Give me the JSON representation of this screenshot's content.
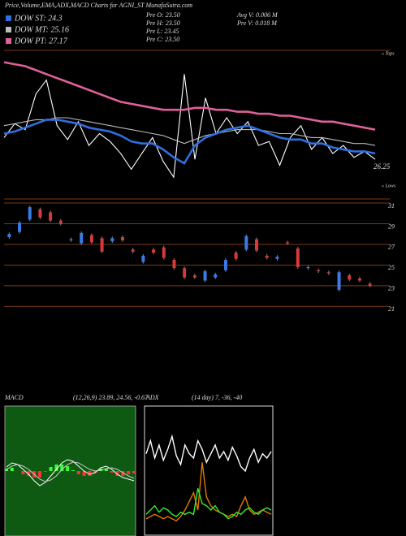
{
  "chart_data": [
    {
      "type": "line",
      "title": "Price,Volume,EMA,ADX,MACD Charts for AGNI_ST MunafaSutra.com",
      "stats": [
        "Pre  O: 23.50",
        "Pre  H: 23.50",
        "Pre  L: 23.45",
        "Pre  C: 23.50",
        "Avg V: 0.006  M",
        "Pre  V: 0.018 M"
      ],
      "annotations": [
        "« Tops",
        "« Lows",
        "26.25"
      ],
      "ylim": [
        24.5,
        32
      ],
      "series": [
        {
          "color": "#ffffff",
          "values": [
            27.6,
            28.3,
            28.0,
            29.8,
            30.5,
            28.2,
            27.5,
            28.4,
            27.2,
            27.8,
            27.4,
            26.8,
            26.0,
            26.8,
            27.6,
            26.4,
            25.6,
            30.8,
            26.5,
            29.6,
            27.8,
            28.6,
            27.8,
            28.4,
            27.2,
            27.4,
            26.2,
            27.6,
            28.2,
            27.0,
            27.6,
            26.8,
            27.2,
            26.6,
            26.9,
            26.5
          ]
        },
        {
          "name": "DOW MT: 25.16",
          "color": "#bbbbbb",
          "values": [
            28.2,
            28.3,
            28.4,
            28.5,
            28.5,
            28.6,
            28.6,
            28.5,
            28.4,
            28.3,
            28.2,
            28.1,
            28.0,
            27.9,
            27.8,
            27.7,
            27.5,
            27.3,
            27.5,
            27.7,
            27.8,
            27.9,
            28.0,
            28.0,
            28.0,
            27.9,
            27.8,
            27.8,
            27.7,
            27.6,
            27.6,
            27.5,
            27.4,
            27.3,
            27.3,
            27.2
          ]
        },
        {
          "name": "DOW ST: 24.3",
          "color": "#2f6fe0",
          "values": [
            27.8,
            27.9,
            28.1,
            28.3,
            28.5,
            28.5,
            28.4,
            28.3,
            28.1,
            28.0,
            27.9,
            27.7,
            27.4,
            27.3,
            27.3,
            27.0,
            26.6,
            26.3,
            27.2,
            27.6,
            27.8,
            28.0,
            28.1,
            28.2,
            28.0,
            27.8,
            27.6,
            27.5,
            27.5,
            27.3,
            27.3,
            27.1,
            27.0,
            26.9,
            26.9,
            26.8
          ]
        },
        {
          "name": "DOW PT: 27.17",
          "color": "#e0609a",
          "values": [
            31.4,
            31.3,
            31.2,
            31.0,
            30.8,
            30.6,
            30.4,
            30.2,
            30.0,
            29.8,
            29.6,
            29.4,
            29.3,
            29.2,
            29.1,
            29.0,
            29.0,
            29.0,
            29.1,
            29.1,
            29.0,
            29.0,
            28.9,
            28.9,
            28.8,
            28.8,
            28.7,
            28.7,
            28.6,
            28.5,
            28.4,
            28.4,
            28.3,
            28.2,
            28.1,
            28.0
          ]
        }
      ]
    },
    {
      "type": "candlestick",
      "ylim": [
        20,
        31
      ],
      "yticks": [
        31,
        29,
        27,
        25,
        23,
        21
      ],
      "up_color": "#3a7be8",
      "down_color": "#d83a3a",
      "open": [
        27.7,
        28.2,
        29.4,
        30.4,
        30.1,
        29.3,
        27.4,
        27.1,
        27.9,
        27.6,
        27.3,
        27.7,
        26.5,
        25.3,
        26.5,
        26.7,
        25.5,
        24.7,
        24.0,
        23.5,
        23.8,
        24.5,
        26.2,
        26.5,
        27.5,
        25.9,
        25.6,
        27.2,
        26.6,
        24.7,
        24.5,
        24.3,
        22.6,
        24.0,
        23.7,
        23.2
      ],
      "close": [
        28.0,
        29.1,
        30.6,
        29.6,
        29.3,
        29.0,
        27.5,
        28.1,
        27.2,
        26.3,
        27.6,
        27.4,
        26.3,
        25.9,
        26.2,
        25.7,
        24.7,
        23.8,
        23.8,
        24.4,
        24.1,
        25.5,
        25.6,
        27.8,
        26.4,
        25.7,
        25.8,
        27.1,
        24.8,
        24.8,
        24.4,
        24.2,
        24.3,
        23.6,
        23.5,
        23.0
      ]
    },
    {
      "type": "macd",
      "title": "MACD",
      "subtitle": "(12,26,9) 23.89, 24.56, -0.67",
      "ylim": [
        -8,
        8
      ],
      "series": [
        {
          "color": "#ffffff",
          "values": [
            0.5,
            1.0,
            0.8,
            0.2,
            -0.4,
            -1.2,
            -1.8,
            -1.4,
            -0.6,
            0.2,
            1.0,
            1.4,
            1.2,
            0.6,
            0.0,
            -0.4,
            -0.2,
            0.4,
            0.6,
            0.2,
            -0.4,
            -0.8,
            -1.0,
            -1.2
          ]
        },
        {
          "color": "#cccccc",
          "values": [
            0.2,
            0.6,
            0.8,
            0.6,
            0.2,
            -0.4,
            -1.0,
            -1.3,
            -1.1,
            -0.6,
            0.2,
            0.8,
            1.1,
            1.0,
            0.6,
            0.2,
            0.0,
            0.1,
            0.3,
            0.4,
            0.2,
            -0.2,
            -0.6,
            -0.9
          ]
        }
      ],
      "histogram": [
        0.3,
        0.4,
        0,
        -0.4,
        -0.6,
        -0.8,
        -0.8,
        -0.1,
        0.5,
        0.8,
        0.8,
        0.6,
        0.1,
        -0.4,
        -0.6,
        -0.6,
        -0.2,
        0.3,
        0.3,
        -0.2,
        -0.6,
        -0.6,
        -0.4,
        -0.3
      ],
      "up_color": "#33ff33",
      "down_color": "#ff3333"
    },
    {
      "type": "adx",
      "title": "ADX",
      "subtitle": "(14 day) 7, -36, -40",
      "ylim": [
        0,
        60
      ],
      "series": [
        {
          "color": "#ffffff",
          "values": [
            38,
            44,
            36,
            42,
            35,
            40,
            46,
            37,
            33,
            42,
            38,
            36,
            44,
            40,
            34,
            38,
            42,
            36,
            39,
            35,
            41,
            37,
            32,
            30,
            36,
            40,
            34,
            38,
            36,
            39
          ]
        },
        {
          "color": "#e07b00",
          "values": [
            8,
            9,
            10,
            9,
            8,
            9,
            8,
            7,
            9,
            12,
            16,
            20,
            12,
            34,
            18,
            14,
            12,
            11,
            10,
            9,
            10,
            9,
            14,
            18,
            12,
            10,
            11,
            12,
            11,
            10
          ]
        },
        {
          "color": "#33ee33",
          "values": [
            10,
            12,
            14,
            11,
            13,
            12,
            10,
            9,
            11,
            10,
            11,
            10,
            22,
            15,
            14,
            12,
            14,
            11,
            10,
            8,
            9,
            11,
            10,
            12,
            13,
            11,
            10,
            12,
            13,
            12
          ]
        }
      ]
    }
  ]
}
